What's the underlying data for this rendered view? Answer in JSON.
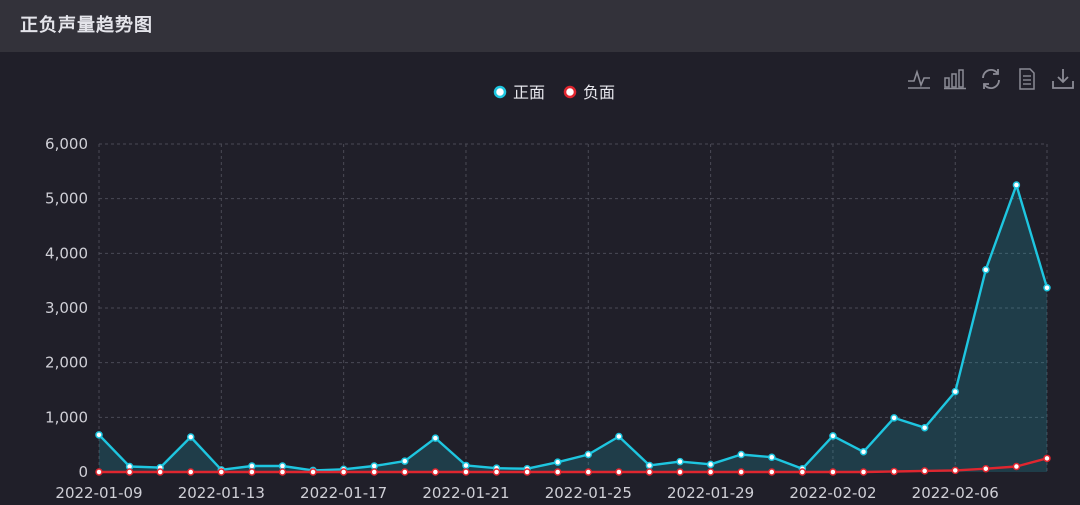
{
  "header": {
    "title": "正负声量趋势图"
  },
  "toolbox": {
    "icons": [
      "line-chart-icon",
      "bar-chart-icon",
      "refresh-icon",
      "data-view-icon",
      "download-icon"
    ]
  },
  "colors": {
    "positive": "#1ec6e0",
    "negative": "#e0262f",
    "axis_text": "#cfcfd6",
    "grid": "#4a4a55"
  },
  "chart_data": {
    "type": "line",
    "title": "",
    "xlabel": "",
    "ylabel": "",
    "ylim": [
      0,
      6000
    ],
    "y_ticks": [
      "0",
      "1,000",
      "2,000",
      "3,000",
      "4,000",
      "5,000",
      "6,000"
    ],
    "legend_position": "top-center",
    "grid": true,
    "x": [
      "2022-01-09",
      "2022-01-10",
      "2022-01-11",
      "2022-01-12",
      "2022-01-13",
      "2022-01-14",
      "2022-01-15",
      "2022-01-16",
      "2022-01-17",
      "2022-01-18",
      "2022-01-19",
      "2022-01-20",
      "2022-01-21",
      "2022-01-22",
      "2022-01-23",
      "2022-01-24",
      "2022-01-25",
      "2022-01-26",
      "2022-01-27",
      "2022-01-28",
      "2022-01-29",
      "2022-01-30",
      "2022-01-31",
      "2022-02-01",
      "2022-02-02",
      "2022-02-03",
      "2022-02-04",
      "2022-02-05",
      "2022-02-06",
      "2022-02-07",
      "2022-02-08",
      "2022-02-09"
    ],
    "x_tick_labels": [
      "2022-01-09",
      "2022-01-13",
      "2022-01-17",
      "2022-01-21",
      "2022-01-25",
      "2022-01-29",
      "2022-02-02",
      "2022-02-06"
    ],
    "series": [
      {
        "name": "正面",
        "area": true,
        "values": [
          680,
          100,
          80,
          640,
          40,
          110,
          110,
          30,
          50,
          110,
          200,
          620,
          120,
          70,
          60,
          180,
          320,
          650,
          120,
          190,
          140,
          320,
          270,
          60,
          660,
          370,
          990,
          810,
          1470,
          3700,
          5250,
          3370
        ]
      },
      {
        "name": "负面",
        "area": false,
        "values": [
          0,
          0,
          0,
          0,
          0,
          0,
          0,
          0,
          0,
          0,
          0,
          0,
          0,
          0,
          0,
          0,
          0,
          0,
          0,
          0,
          0,
          0,
          0,
          0,
          0,
          0,
          10,
          20,
          30,
          60,
          100,
          250
        ]
      }
    ]
  }
}
